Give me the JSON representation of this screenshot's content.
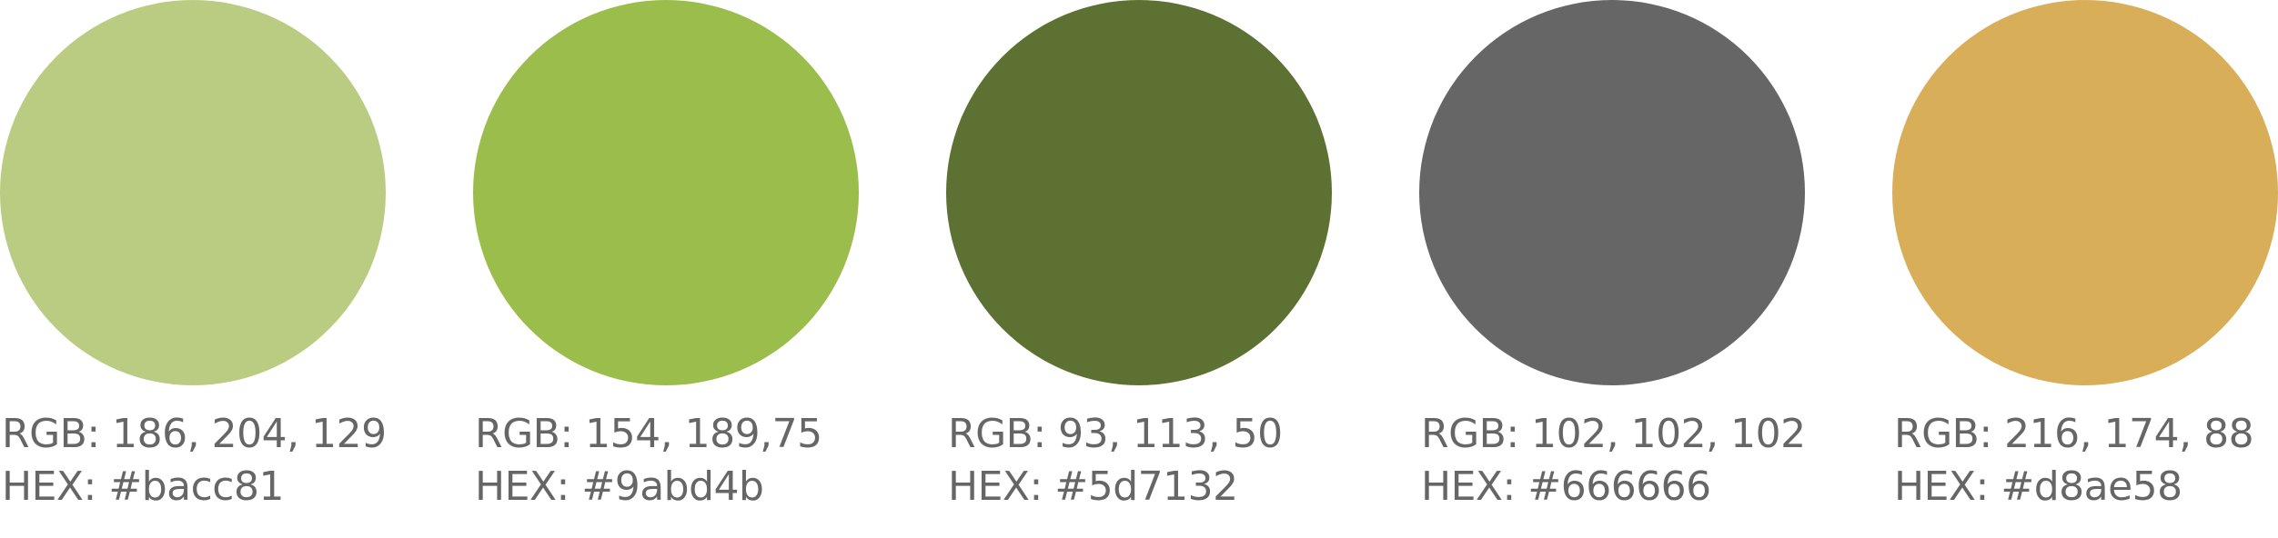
{
  "swatches": [
    {
      "color": "#bacc81",
      "rgb_label": "RGB: 186, 204, 129",
      "hex_label": "HEX: #bacc81"
    },
    {
      "color": "#9abd4b",
      "rgb_label": "RGB: 154, 189,75",
      "hex_label": "HEX: #9abd4b"
    },
    {
      "color": "#5d7132",
      "rgb_label": "RGB: 93, 113, 50",
      "hex_label": "HEX: #5d7132"
    },
    {
      "color": "#666666",
      "rgb_label": "RGB: 102, 102, 102",
      "hex_label": "HEX: #666666"
    },
    {
      "color": "#d8ae58",
      "rgb_label": "RGB: 216, 174, 88",
      "hex_label": "HEX: #d8ae58"
    }
  ],
  "label_color": "#666666"
}
